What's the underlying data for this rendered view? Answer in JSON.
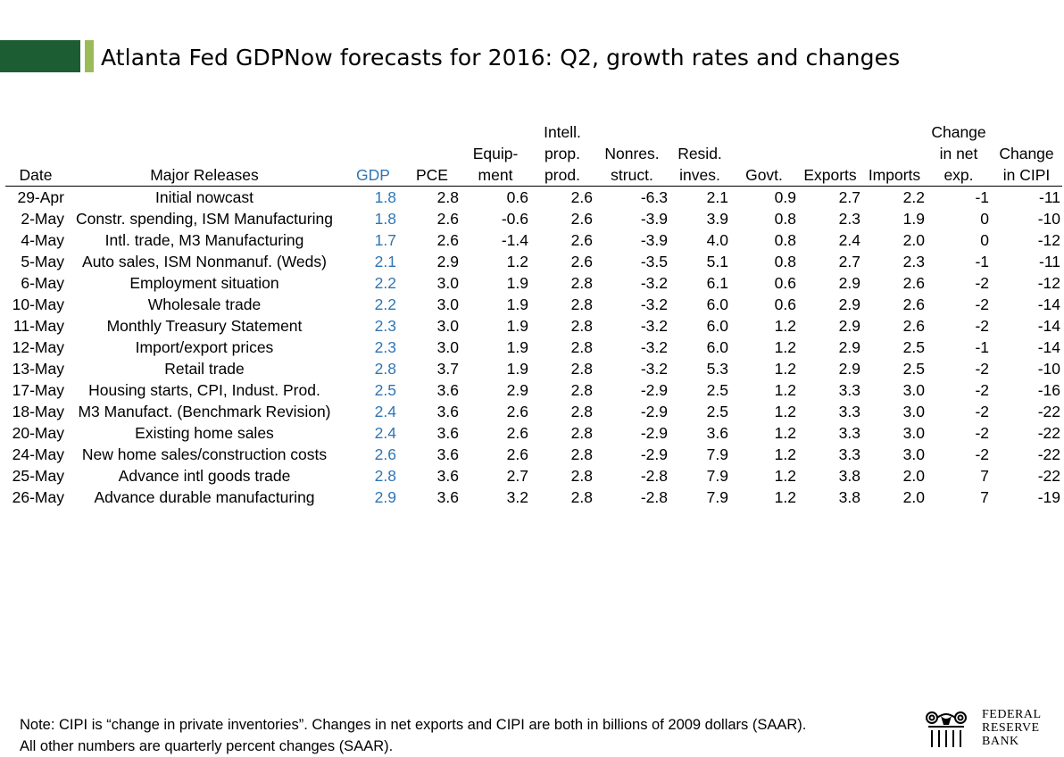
{
  "title": "Atlanta Fed GDPNow forecasts for 2016: Q2, growth rates and changes",
  "columns": [
    "Date",
    "Major Releases",
    "GDP",
    "PCE",
    "Equip-\nment",
    "Intell.\nprop.\nprod.",
    "Nonres.\nstruct.",
    "Resid.\ninves.",
    "Govt.",
    "Exports",
    "Imports",
    "Change\nin net\nexp.",
    "Change\nin CIPI"
  ],
  "rows": [
    [
      "29-Apr",
      "Initial nowcast",
      "1.8",
      "2.8",
      "0.6",
      "2.6",
      "-6.3",
      "2.1",
      "0.9",
      "2.7",
      "2.2",
      "-1",
      "-11"
    ],
    [
      "2-May",
      "Constr. spending, ISM Manufacturing",
      "1.8",
      "2.6",
      "-0.6",
      "2.6",
      "-3.9",
      "3.9",
      "0.8",
      "2.3",
      "1.9",
      "0",
      "-10"
    ],
    [
      "4-May",
      "Intl. trade, M3 Manufacturing",
      "1.7",
      "2.6",
      "-1.4",
      "2.6",
      "-3.9",
      "4.0",
      "0.8",
      "2.4",
      "2.0",
      "0",
      "-12"
    ],
    [
      "5-May",
      "Auto sales, ISM Nonmanuf. (Weds)",
      "2.1",
      "2.9",
      "1.2",
      "2.6",
      "-3.5",
      "5.1",
      "0.8",
      "2.7",
      "2.3",
      "-1",
      "-11"
    ],
    [
      "6-May",
      "Employment situation",
      "2.2",
      "3.0",
      "1.9",
      "2.8",
      "-3.2",
      "6.1",
      "0.6",
      "2.9",
      "2.6",
      "-2",
      "-12"
    ],
    [
      "10-May",
      "Wholesale trade",
      "2.2",
      "3.0",
      "1.9",
      "2.8",
      "-3.2",
      "6.0",
      "0.6",
      "2.9",
      "2.6",
      "-2",
      "-14"
    ],
    [
      "11-May",
      "Monthly Treasury Statement",
      "2.3",
      "3.0",
      "1.9",
      "2.8",
      "-3.2",
      "6.0",
      "1.2",
      "2.9",
      "2.6",
      "-2",
      "-14"
    ],
    [
      "12-May",
      "Import/export prices",
      "2.3",
      "3.0",
      "1.9",
      "2.8",
      "-3.2",
      "6.0",
      "1.2",
      "2.9",
      "2.5",
      "-1",
      "-14"
    ],
    [
      "13-May",
      "Retail trade",
      "2.8",
      "3.7",
      "1.9",
      "2.8",
      "-3.2",
      "5.3",
      "1.2",
      "2.9",
      "2.5",
      "-2",
      "-10"
    ],
    [
      "17-May",
      "Housing starts, CPI, Indust. Prod.",
      "2.5",
      "3.6",
      "2.9",
      "2.8",
      "-2.9",
      "2.5",
      "1.2",
      "3.3",
      "3.0",
      "-2",
      "-16"
    ],
    [
      "18-May",
      "M3 Manufact. (Benchmark Revision)",
      "2.4",
      "3.6",
      "2.6",
      "2.8",
      "-2.9",
      "2.5",
      "1.2",
      "3.3",
      "3.0",
      "-2",
      "-22"
    ],
    [
      "20-May",
      "Existing home sales",
      "2.4",
      "3.6",
      "2.6",
      "2.8",
      "-2.9",
      "3.6",
      "1.2",
      "3.3",
      "3.0",
      "-2",
      "-22"
    ],
    [
      "24-May",
      "New home sales/construction costs",
      "2.6",
      "3.6",
      "2.6",
      "2.8",
      "-2.9",
      "7.9",
      "1.2",
      "3.3",
      "3.0",
      "-2",
      "-22"
    ],
    [
      "25-May",
      "Advance intl goods trade",
      "2.8",
      "3.6",
      "2.7",
      "2.8",
      "-2.8",
      "7.9",
      "1.2",
      "3.8",
      "2.0",
      "7",
      "-22"
    ],
    [
      "26-May",
      "Advance durable manufacturing",
      "2.9",
      "3.6",
      "3.2",
      "2.8",
      "-2.8",
      "7.9",
      "1.2",
      "3.8",
      "2.0",
      "7",
      "-19"
    ]
  ],
  "note_line1": "Note:  CIPI is “change in private inventories”.  Changes in net exports and CIPI are both in billions of 2009 dollars (SAAR).",
  "note_line2": "All other numbers are quarterly percent changes (SAAR).",
  "logo": {
    "line1": "FEDERAL",
    "line2": "RESERVE",
    "line3": "BANK"
  },
  "colors": {
    "gdp": "#2e75b6",
    "title_bar_dark": "#1d5d33",
    "title_bar_light": "#9bbb59"
  }
}
